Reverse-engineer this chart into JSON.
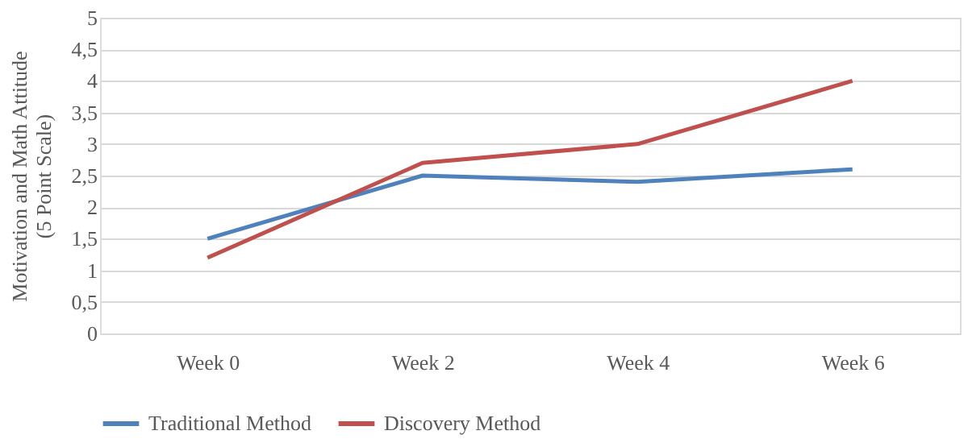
{
  "chart_data": {
    "type": "line",
    "ylabel": "Motivation and Math Attitude\n(5 Point Scale)",
    "categories": [
      "Week 0",
      "Week 2",
      "Week 4",
      "Week 6"
    ],
    "series": [
      {
        "name": "Traditional Method",
        "color": "#4f81bd",
        "values": [
          1.5,
          2.5,
          2.4,
          2.6
        ]
      },
      {
        "name": "Discovery Method",
        "color": "#c0504d",
        "values": [
          1.2,
          2.7,
          3.0,
          4.0
        ]
      }
    ],
    "ylim": [
      0,
      5
    ],
    "yticks": [
      0,
      {
        "value": 0.5,
        "label": "0,5"
      },
      1,
      {
        "value": 1.5,
        "label": "1,5"
      },
      2,
      {
        "value": 2.5,
        "label": "2,5"
      },
      3,
      {
        "value": 3.5,
        "label": "3,5"
      },
      4,
      {
        "value": 4.5,
        "label": "4,5"
      },
      5
    ],
    "grid": "y",
    "legend": "bottom",
    "marker": "none",
    "line_style": "solid"
  }
}
